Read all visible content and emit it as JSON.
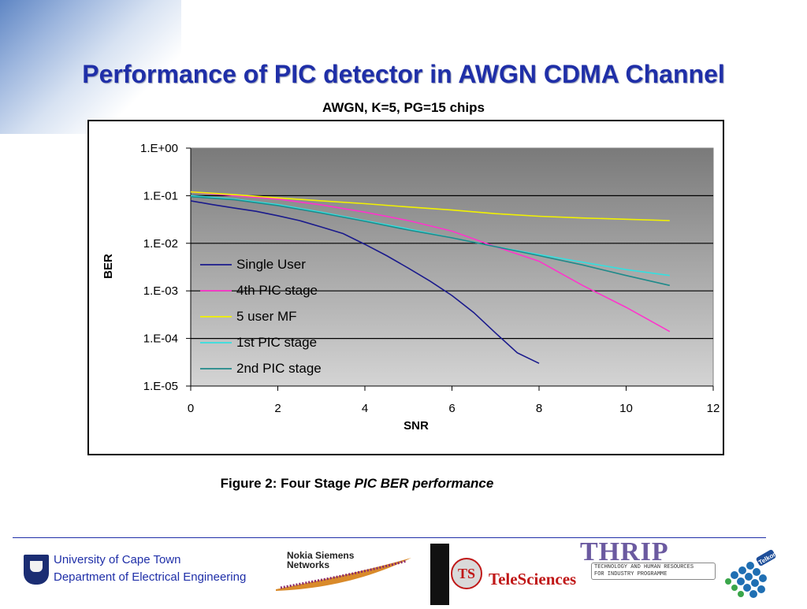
{
  "slide": {
    "title": "Performance of PIC detector in AWGN CDMA Channel",
    "caption_normal": "Figure 2: Four Stage ",
    "caption_italic": "PIC BER performance"
  },
  "chart_data": {
    "type": "line",
    "title": "AWGN, K=5, PG=15 chips",
    "xlabel": "SNR",
    "ylabel": "BER",
    "xlim": [
      0,
      12
    ],
    "ylim": [
      1e-05,
      1
    ],
    "yscale": "log",
    "xticks": [
      "0",
      "2",
      "4",
      "6",
      "8",
      "10",
      "12"
    ],
    "yticks": [
      "1.E+00",
      "1.E-01",
      "1.E-02",
      "1.E-03",
      "1.E-04",
      "1.E-05"
    ],
    "grid": "horizontal",
    "legend_position": "left-lower",
    "plot_background": "gradient dark-gray to light-gray",
    "series": [
      {
        "name": "Single User",
        "color": "#1a1a8c",
        "x": [
          0,
          0.5,
          1,
          1.5,
          2,
          2.5,
          3,
          3.5,
          4,
          4.5,
          5,
          5.5,
          6,
          6.5,
          7,
          7.5,
          8
        ],
        "y": [
          0.078,
          0.065,
          0.055,
          0.047,
          0.038,
          0.03,
          0.022,
          0.016,
          0.0095,
          0.0055,
          0.003,
          0.0016,
          0.0008,
          0.00035,
          0.00013,
          5e-05,
          3e-05
        ]
      },
      {
        "name": "4th PIC stage",
        "color": "#ff33cc",
        "x": [
          0,
          1,
          2,
          3,
          4,
          5,
          6,
          7,
          8,
          9,
          10,
          11
        ],
        "y": [
          0.12,
          0.1,
          0.085,
          0.064,
          0.045,
          0.03,
          0.018,
          0.0085,
          0.0042,
          0.0013,
          0.00045,
          0.00014
        ]
      },
      {
        "name": "5 user MF",
        "color": "#f2f200",
        "x": [
          0,
          1,
          2,
          3,
          4,
          5,
          6,
          7,
          8,
          9,
          10,
          11
        ],
        "y": [
          0.12,
          0.105,
          0.09,
          0.078,
          0.068,
          0.058,
          0.05,
          0.042,
          0.037,
          0.034,
          0.032,
          0.03
        ]
      },
      {
        "name": "1st PIC stage",
        "color": "#33e0e0",
        "x": [
          0,
          1,
          2,
          3,
          4,
          5,
          6,
          7,
          8,
          9,
          10,
          11
        ],
        "y": [
          0.1,
          0.085,
          0.065,
          0.045,
          0.03,
          0.02,
          0.013,
          0.0085,
          0.0058,
          0.004,
          0.0028,
          0.0021
        ]
      },
      {
        "name": "2nd PIC stage",
        "color": "#1f8a8a",
        "x": [
          0,
          1,
          2,
          3,
          4,
          5,
          6,
          7,
          8,
          9,
          10,
          11
        ],
        "y": [
          0.095,
          0.082,
          0.062,
          0.043,
          0.029,
          0.019,
          0.013,
          0.0085,
          0.0055,
          0.0035,
          0.0021,
          0.0013
        ]
      }
    ]
  },
  "footer": {
    "uct_line1": "University of Cape Town",
    "uct_line2": "Department of Electrical Engineering",
    "nsn_line1": "Nokia Siemens",
    "nsn_line2": "Networks",
    "tele_name": "TeleSciences",
    "tele_mark": "TS",
    "thrip_word": "THRIP",
    "thrip_line1": "TECHNOLOGY AND HUMAN RESOURCES",
    "thrip_line2": "FOR INDUSTRY PROGRAMME",
    "telkom_name": "Telkom"
  }
}
